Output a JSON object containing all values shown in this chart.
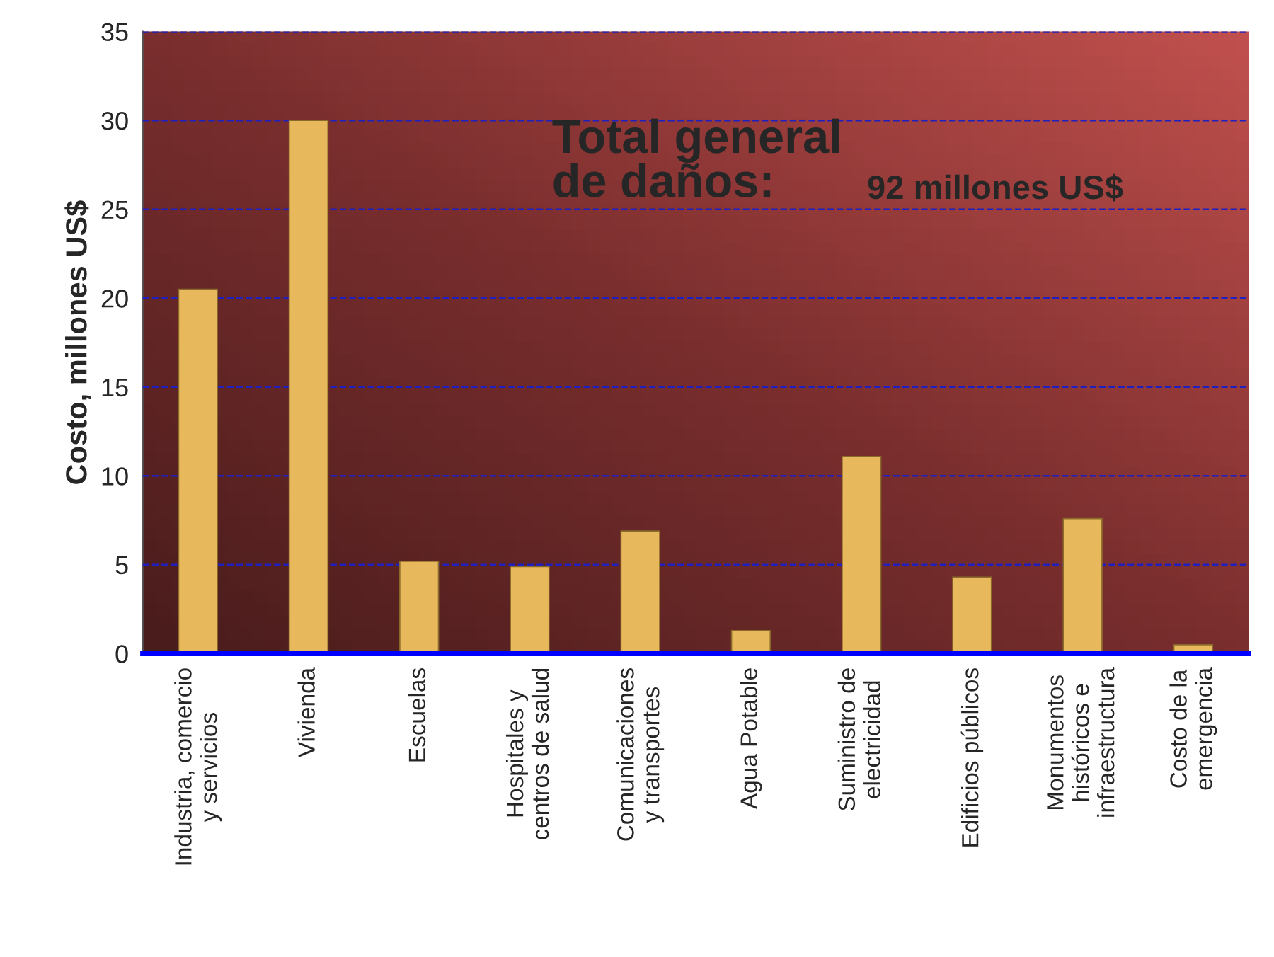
{
  "chart_data": {
    "type": "bar",
    "ylabel": "Costo, millones US$",
    "categories": [
      "Industria, comercio\ny servicios",
      "Vivienda",
      "Escuelas",
      "Hospitales y\ncentros de salud",
      "Comunicaciones\ny transportes",
      "Agua Potable",
      "Suministro de\nelectricidad",
      "Edificios públicos",
      "Monumentos\nhistóricos e\ninfraestructura",
      "Costo de la\nemergencia"
    ],
    "values": [
      20.5,
      30,
      5.2,
      4.9,
      6.9,
      1.3,
      11.1,
      4.3,
      7.6,
      0.5
    ],
    "color": "#e8b85c",
    "ylim": [
      0,
      35
    ],
    "yticks": [
      0,
      5,
      10,
      15,
      20,
      25,
      30,
      35
    ],
    "grid": "y",
    "annotations": [
      "Total general\nde daños:",
      "92 millones US$"
    ]
  }
}
